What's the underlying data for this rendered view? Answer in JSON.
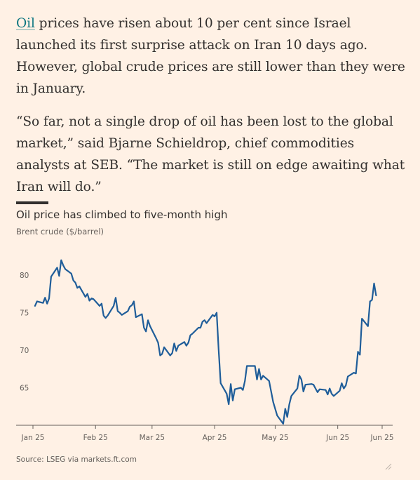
{
  "article": {
    "p1_link": "Oil",
    "p1_rest": " prices have risen about 10 per cent since Israel launched its first surprise attack on Iran 10 days ago. However, global crude prices are still lower than they were in January.",
    "p2": "“So far, not a single drop of oil has been lost to the global market,” said Bjarne Schieldrop, chief commodities analysts at SEB. “The market is still on edge awaiting what Iran will do.”"
  },
  "chart_data": {
    "type": "line",
    "title": "Oil price has climbed to five-month high",
    "subtitle": "Brent crude ($/barrel)",
    "source": "Source: LSEG via markets.ft.com",
    "xlabel": "",
    "ylabel": "",
    "ylim": [
      60,
      83
    ],
    "yticks": [
      65,
      70,
      75,
      80
    ],
    "x_range": [
      "2025-01-01",
      "2025-06-23"
    ],
    "xticks": [
      {
        "date": "2025-01-01",
        "label": "Jan 25"
      },
      {
        "date": "2025-02-01",
        "label": "Feb 25"
      },
      {
        "date": "2025-03-01",
        "label": "Mar 25"
      },
      {
        "date": "2025-04-01",
        "label": "Apr 25"
      },
      {
        "date": "2025-05-01",
        "label": "May 25"
      },
      {
        "date": "2025-06-01",
        "label": "Jun 25"
      },
      {
        "date": "2025-06-23",
        "label": "Jun 25"
      }
    ],
    "grid": false,
    "line_color": "#1f5d99",
    "series": [
      {
        "name": "",
        "points": [
          [
            "2025-01-02",
            75.9
          ],
          [
            "2025-01-03",
            76.5
          ],
          [
            "2025-01-06",
            76.3
          ],
          [
            "2025-01-07",
            77.0
          ],
          [
            "2025-01-08",
            76.2
          ],
          [
            "2025-01-09",
            76.9
          ],
          [
            "2025-01-10",
            79.8
          ],
          [
            "2025-01-13",
            81.0
          ],
          [
            "2025-01-14",
            79.9
          ],
          [
            "2025-01-15",
            82.0
          ],
          [
            "2025-01-16",
            81.3
          ],
          [
            "2025-01-17",
            80.8
          ],
          [
            "2025-01-20",
            80.2
          ],
          [
            "2025-01-21",
            79.3
          ],
          [
            "2025-01-22",
            79.0
          ],
          [
            "2025-01-23",
            78.3
          ],
          [
            "2025-01-24",
            78.5
          ],
          [
            "2025-01-27",
            77.1
          ],
          [
            "2025-01-28",
            77.5
          ],
          [
            "2025-01-29",
            76.6
          ],
          [
            "2025-01-30",
            76.9
          ],
          [
            "2025-01-31",
            76.8
          ],
          [
            "2025-02-03",
            75.9
          ],
          [
            "2025-02-04",
            76.2
          ],
          [
            "2025-02-05",
            74.6
          ],
          [
            "2025-02-06",
            74.3
          ],
          [
            "2025-02-07",
            74.6
          ],
          [
            "2025-02-10",
            75.9
          ],
          [
            "2025-02-11",
            77.0
          ],
          [
            "2025-02-12",
            75.2
          ],
          [
            "2025-02-13",
            75.0
          ],
          [
            "2025-02-14",
            74.7
          ],
          [
            "2025-02-17",
            75.2
          ],
          [
            "2025-02-18",
            75.8
          ],
          [
            "2025-02-19",
            76.0
          ],
          [
            "2025-02-20",
            76.5
          ],
          [
            "2025-02-21",
            74.4
          ],
          [
            "2025-02-24",
            74.8
          ],
          [
            "2025-02-25",
            73.0
          ],
          [
            "2025-02-26",
            72.5
          ],
          [
            "2025-02-27",
            74.0
          ],
          [
            "2025-02-28",
            73.2
          ],
          [
            "2025-03-03",
            71.6
          ],
          [
            "2025-03-04",
            71.0
          ],
          [
            "2025-03-05",
            69.3
          ],
          [
            "2025-03-06",
            69.5
          ],
          [
            "2025-03-07",
            70.4
          ],
          [
            "2025-03-10",
            69.3
          ],
          [
            "2025-03-11",
            69.6
          ],
          [
            "2025-03-12",
            70.9
          ],
          [
            "2025-03-13",
            69.9
          ],
          [
            "2025-03-14",
            70.6
          ],
          [
            "2025-03-17",
            71.1
          ],
          [
            "2025-03-18",
            70.6
          ],
          [
            "2025-03-19",
            71.0
          ],
          [
            "2025-03-20",
            72.0
          ],
          [
            "2025-03-21",
            72.2
          ],
          [
            "2025-03-24",
            73.0
          ],
          [
            "2025-03-25",
            73.0
          ],
          [
            "2025-03-26",
            73.8
          ],
          [
            "2025-03-27",
            74.0
          ],
          [
            "2025-03-28",
            73.6
          ],
          [
            "2025-03-31",
            74.7
          ],
          [
            "2025-04-01",
            74.5
          ],
          [
            "2025-04-02",
            75.0
          ],
          [
            "2025-04-03",
            70.1
          ],
          [
            "2025-04-04",
            65.6
          ],
          [
            "2025-04-07",
            64.2
          ],
          [
            "2025-04-08",
            62.8
          ],
          [
            "2025-04-09",
            65.5
          ],
          [
            "2025-04-10",
            63.3
          ],
          [
            "2025-04-11",
            64.8
          ],
          [
            "2025-04-14",
            65.0
          ],
          [
            "2025-04-15",
            64.7
          ],
          [
            "2025-04-16",
            65.9
          ],
          [
            "2025-04-17",
            67.9
          ],
          [
            "2025-04-21",
            67.9
          ],
          [
            "2025-04-22",
            66.1
          ],
          [
            "2025-04-23",
            67.5
          ],
          [
            "2025-04-24",
            66.1
          ],
          [
            "2025-04-25",
            66.6
          ],
          [
            "2025-04-28",
            65.9
          ],
          [
            "2025-04-29",
            64.5
          ],
          [
            "2025-04-30",
            63.1
          ],
          [
            "2025-05-02",
            61.3
          ],
          [
            "2025-05-05",
            60.2
          ],
          [
            "2025-05-06",
            62.2
          ],
          [
            "2025-05-07",
            61.1
          ],
          [
            "2025-05-08",
            62.8
          ],
          [
            "2025-05-09",
            63.9
          ],
          [
            "2025-05-12",
            64.9
          ],
          [
            "2025-05-13",
            66.6
          ],
          [
            "2025-05-14",
            66.1
          ],
          [
            "2025-05-15",
            64.5
          ],
          [
            "2025-05-16",
            65.4
          ],
          [
            "2025-05-19",
            65.5
          ],
          [
            "2025-05-20",
            65.4
          ],
          [
            "2025-05-21",
            64.9
          ],
          [
            "2025-05-22",
            64.4
          ],
          [
            "2025-05-23",
            64.8
          ],
          [
            "2025-05-26",
            64.7
          ],
          [
            "2025-05-27",
            64.1
          ],
          [
            "2025-05-28",
            64.9
          ],
          [
            "2025-05-29",
            64.2
          ],
          [
            "2025-05-30",
            63.9
          ],
          [
            "2025-06-02",
            64.6
          ],
          [
            "2025-06-03",
            65.6
          ],
          [
            "2025-06-04",
            64.9
          ],
          [
            "2025-06-05",
            65.3
          ],
          [
            "2025-06-06",
            66.5
          ],
          [
            "2025-06-09",
            67.0
          ],
          [
            "2025-06-10",
            66.9
          ],
          [
            "2025-06-11",
            69.8
          ],
          [
            "2025-06-12",
            69.4
          ],
          [
            "2025-06-13",
            74.2
          ],
          [
            "2025-06-16",
            73.2
          ],
          [
            "2025-06-17",
            76.5
          ],
          [
            "2025-06-18",
            76.7
          ],
          [
            "2025-06-19",
            78.9
          ],
          [
            "2025-06-20",
            77.3
          ]
        ]
      }
    ]
  }
}
